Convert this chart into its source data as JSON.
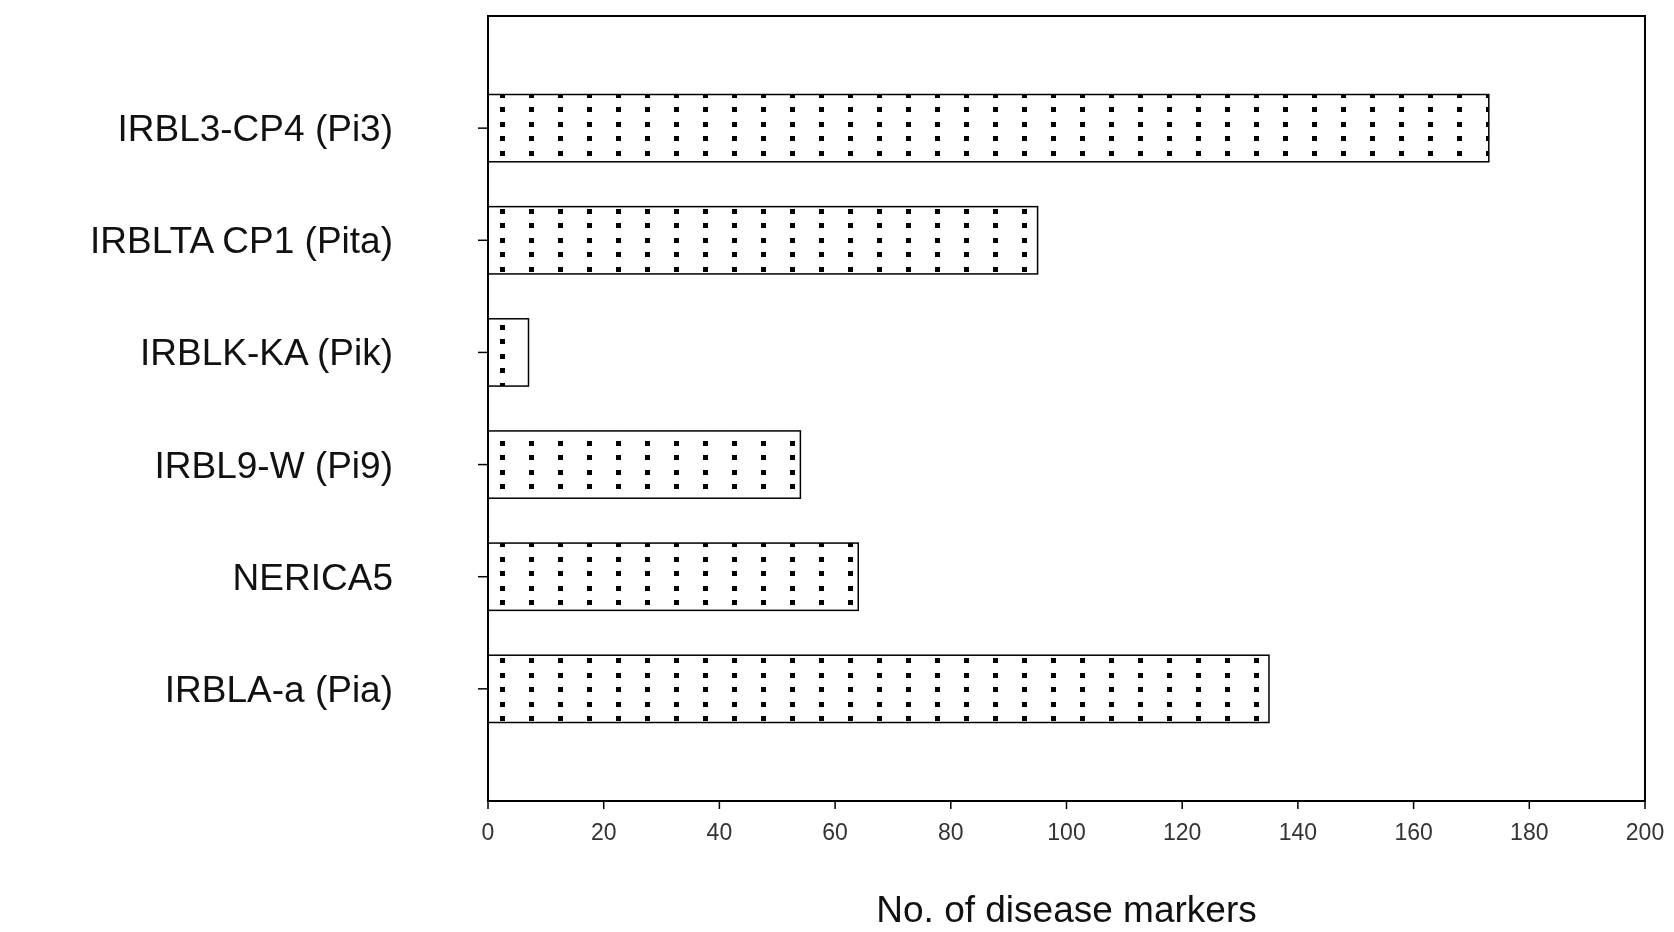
{
  "chart_data": {
    "type": "bar",
    "orientation": "horizontal",
    "xlabel": "No. of disease markers",
    "categories": [
      "IRBL3-CP4 (Pi3)",
      "IRBLTA CP1 (Pita)",
      "IRBLK-KA (Pik)",
      "IRBL9-W (Pi9)",
      "NERICA5",
      "IRBLA-a (Pia)"
    ],
    "values": [
      173,
      95,
      7,
      54,
      64,
      135
    ],
    "color": "#000000",
    "xlim": [
      0,
      200
    ],
    "xticks": [
      0,
      20,
      40,
      60,
      80,
      100,
      120,
      140,
      160,
      180,
      200
    ],
    "grid": false
  }
}
